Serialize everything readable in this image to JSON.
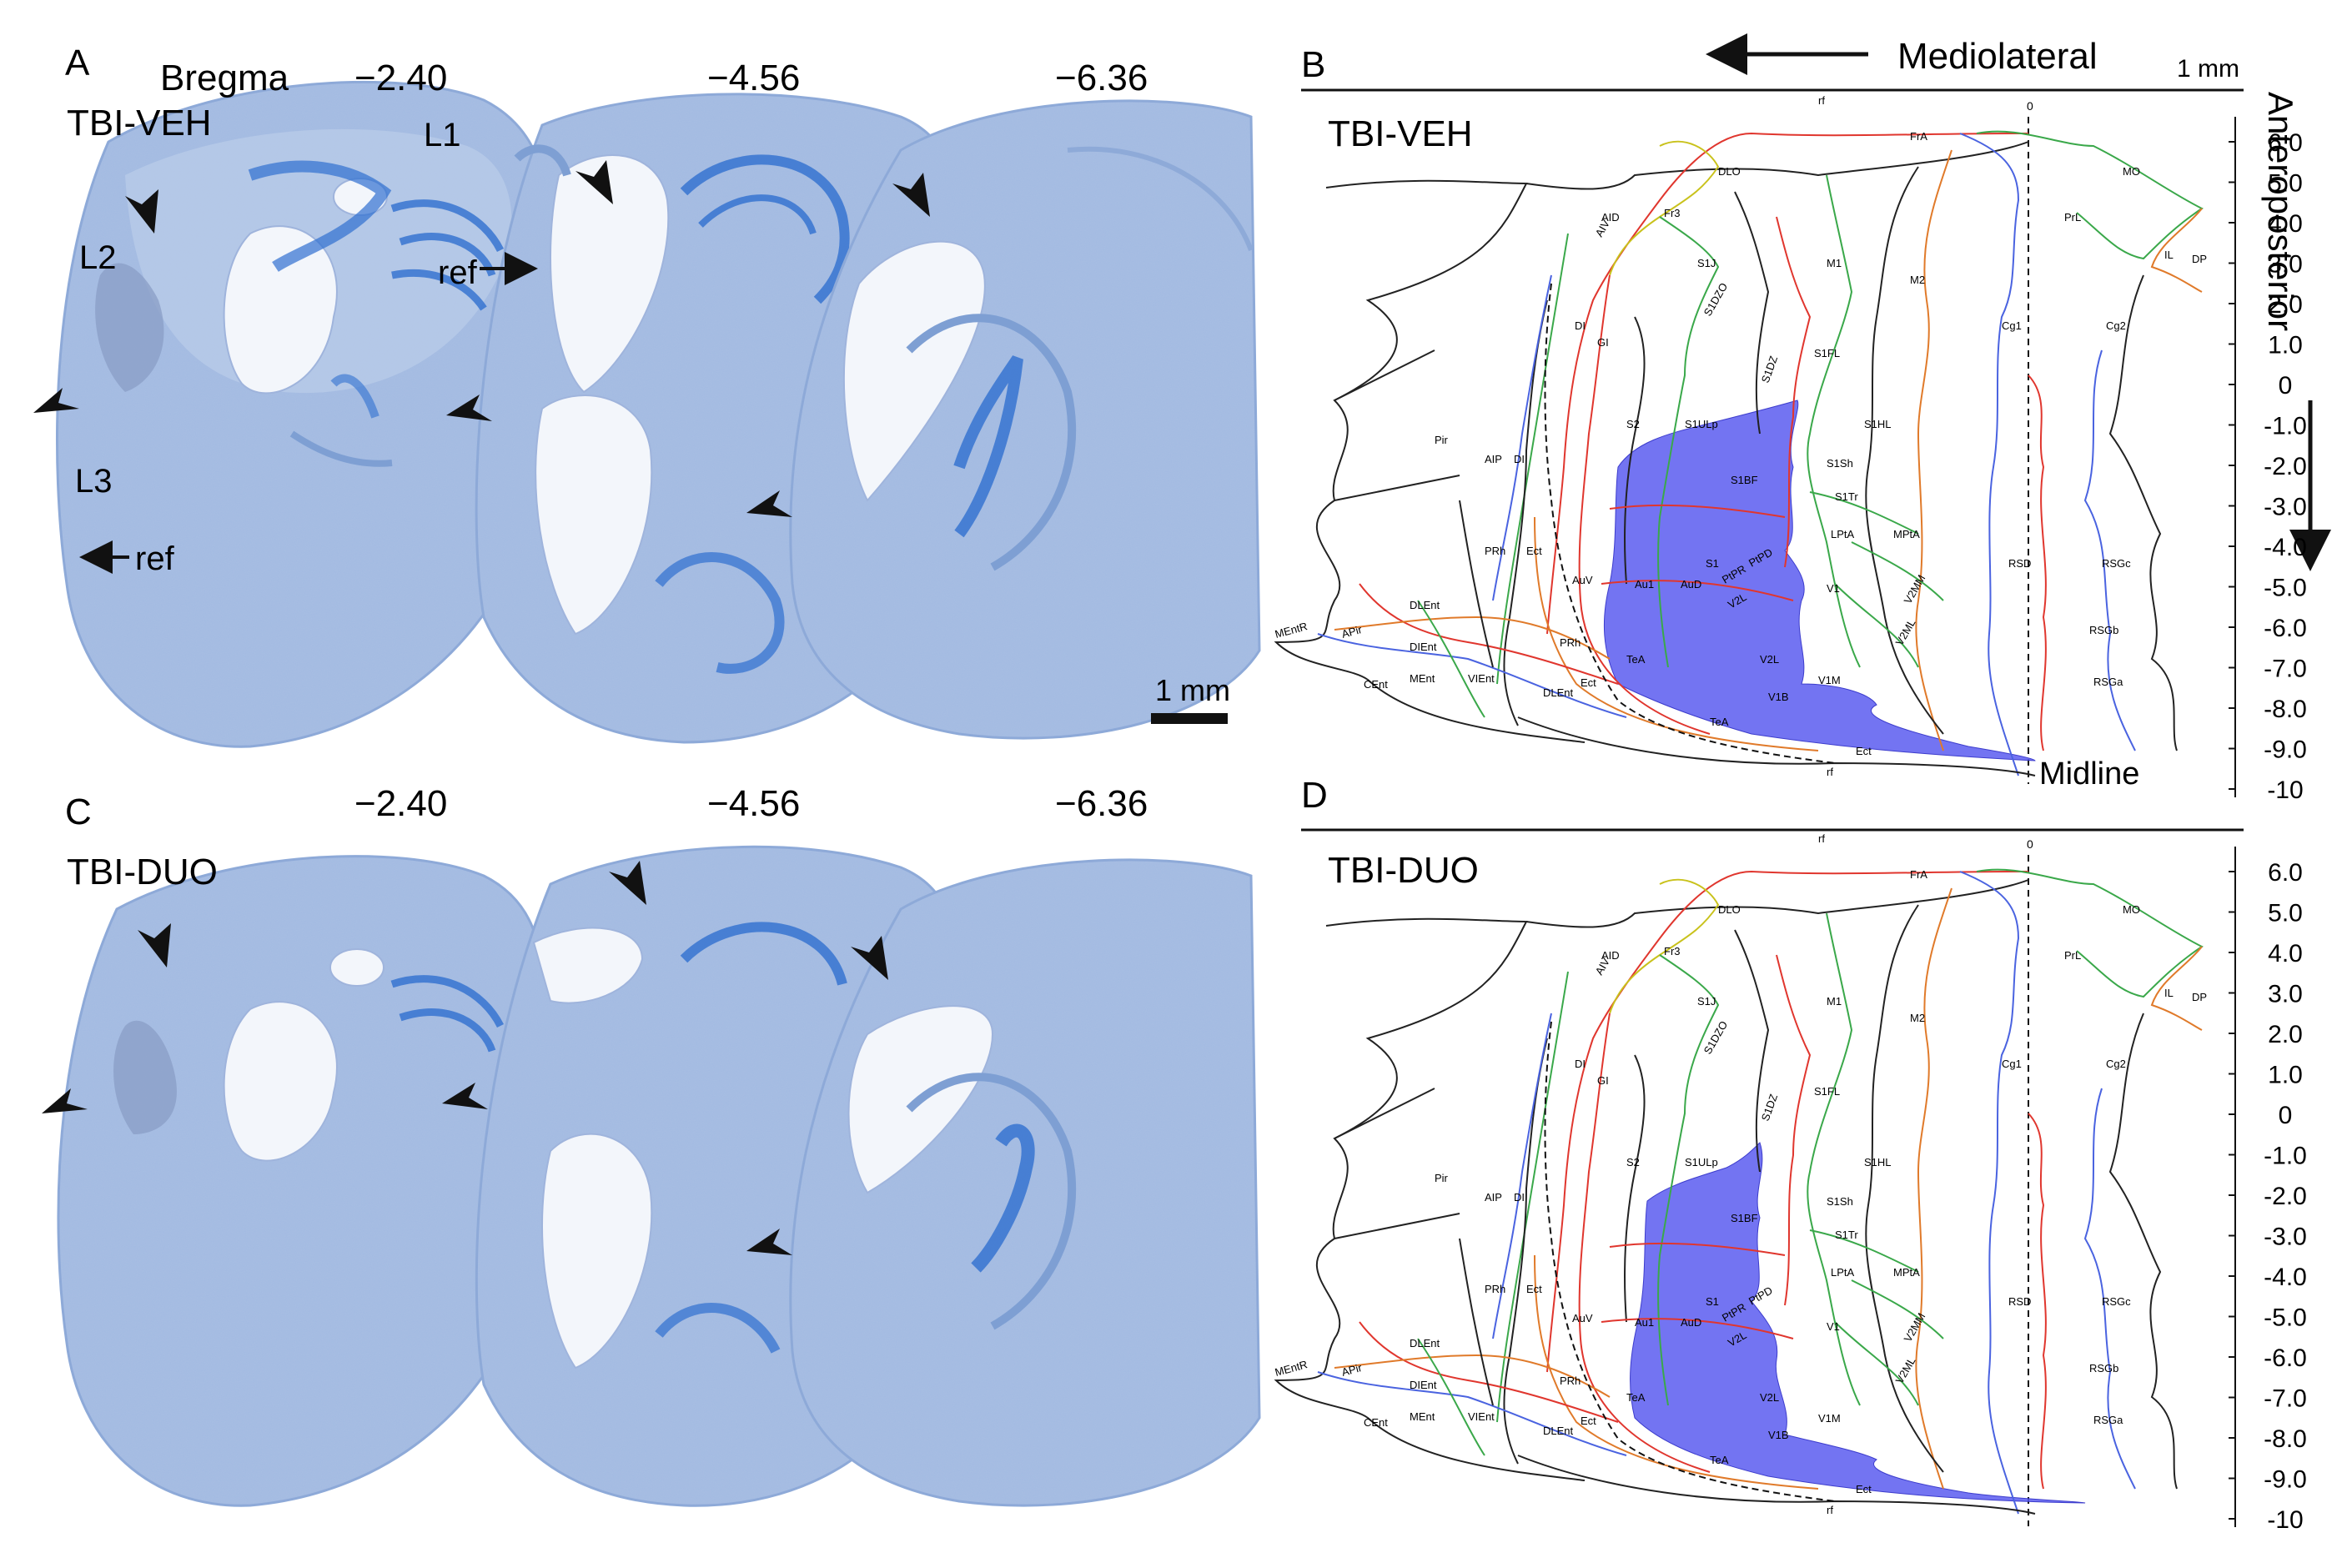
{
  "panelA": {
    "letter": "A",
    "group": "TBI-VEH",
    "bregma_label": "Bregma",
    "levels": [
      "−2.40",
      "−4.56",
      "−6.36"
    ],
    "labels": {
      "l1": "L1",
      "l2": "L2",
      "l3": "L3",
      "ref1": "ref",
      "ref2": "ref"
    },
    "scalebar": "1 mm"
  },
  "panelC": {
    "letter": "C",
    "group": "TBI-DUO",
    "levels": [
      "−2.40",
      "−4.56",
      "−6.36"
    ]
  },
  "panelB": {
    "letter": "B",
    "group": "TBI-VEH",
    "mediolateral": "Mediolateral",
    "scalebar": "1 mm",
    "anteroposterior": "Anteroposterior",
    "midline": "Midline",
    "zero": "0",
    "axis_ticks": [
      "6.0",
      "5.0",
      "4.0",
      "3.0",
      "2.0",
      "1.0",
      "0",
      "-1.0",
      "-2.0",
      "-3.0",
      "-4.0",
      "-5.0",
      "-6.0",
      "-7.0",
      "-8.0",
      "-9.0",
      "-10"
    ]
  },
  "panelD": {
    "letter": "D",
    "group": "TBI-DUO",
    "zero": "0",
    "axis_ticks": [
      "6.0",
      "5.0",
      "4.0",
      "3.0",
      "2.0",
      "1.0",
      "0",
      "-1.0",
      "-2.0",
      "-3.0",
      "-4.0",
      "-5.0",
      "-6.0",
      "-7.0",
      "-8.0",
      "-9.0",
      "-10"
    ]
  },
  "regions": {
    "rf": "rf",
    "FrA": "FrA",
    "MO": "MO",
    "DLO": "DLO",
    "AID": "AID",
    "Fr3": "Fr3",
    "AIV": "AIV",
    "PrL": "PrL",
    "IL": "IL",
    "DP": "DP",
    "S1J": "S1J",
    "M1": "M1",
    "M2": "M2",
    "Cg1": "Cg1",
    "Cg2": "Cg2",
    "S1DZO": "S1DZO",
    "DI": "DI",
    "GI": "GI",
    "S1DZ": "S1DZ",
    "S1FL": "S1FL",
    "S2": "S2",
    "S1ULp": "S1ULp",
    "S1HL": "S1HL",
    "Pir": "Pir",
    "S1BF": "S1BF",
    "S1Sh": "S1Sh",
    "AIP": "AIP",
    "S1Tr": "S1Tr",
    "LPtA": "LPtA",
    "MPtA": "MPtA",
    "PRh": "PRh",
    "Ect": "Ect",
    "S1": "S1",
    "RSGc": "RSGc",
    "RSD": "RSD",
    "AuV": "AuV",
    "Au1": "Au1",
    "AuD": "AuD",
    "PtPR": "PtPR",
    "PtPD": "PtPD",
    "V1": "V1",
    "V2MM": "V2MM",
    "V2L": "V2L",
    "MEntR": "MEntR",
    "APir": "APir",
    "DLEnt": "DLEnt",
    "V2ML": "V2ML",
    "RSGb": "RSGb",
    "DIEnt": "DIEnt",
    "TeA": "TeA",
    "MEnt": "MEnt",
    "VIEnt": "VIEnt",
    "CEnt": "CEnt",
    "V1M": "V1M",
    "RSGa": "RSGa",
    "V1B": "V1B"
  },
  "colors": {
    "tissue": "#9fb7dd",
    "tissue_dark": "#7e9fd3",
    "stain_blue": "#2f6fd0",
    "lesion_fill": "#5b5cf0",
    "line_red": "#e0362e",
    "line_green": "#3aa84a",
    "line_blue": "#4a63e0",
    "line_orange": "#e07a2a",
    "line_yellow": "#c9c21c",
    "line_black": "#222222"
  }
}
